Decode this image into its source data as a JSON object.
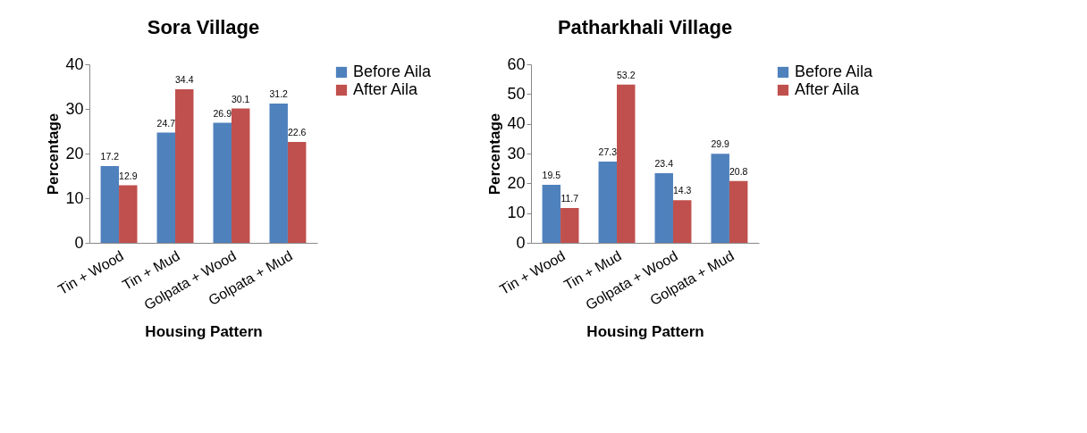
{
  "chart_data": [
    {
      "type": "bar",
      "title": "Sora Village",
      "xlabel": "Housing Pattern",
      "ylabel": "Percentage",
      "categories": [
        "Tin + Wood",
        "Tin + Mud",
        "Golpata + Wood",
        "Golpata + Mud"
      ],
      "series": [
        {
          "name": "Before Aila",
          "color": "#4f81bd",
          "values": [
            17.2,
            24.7,
            26.9,
            31.2
          ]
        },
        {
          "name": "After Aila",
          "color": "#c0504d",
          "values": [
            12.9,
            34.4,
            30.1,
            22.6
          ]
        }
      ],
      "ylim": [
        0,
        40
      ],
      "yticks": [
        0,
        10,
        20,
        30,
        40
      ],
      "grid": false,
      "legend": "right",
      "data_labels": true
    },
    {
      "type": "bar",
      "title": "Patharkhali Village",
      "xlabel": "Housing Pattern",
      "ylabel": "Percentage",
      "categories": [
        "Tin + Wood",
        "Tin + Mud",
        "Golpata + Wood",
        "Golpata + Mud"
      ],
      "series": [
        {
          "name": "Before Aila",
          "color": "#4f81bd",
          "values": [
            19.5,
            27.3,
            23.4,
            29.9
          ]
        },
        {
          "name": "After Aila",
          "color": "#c0504d",
          "values": [
            11.7,
            53.2,
            14.3,
            20.8
          ]
        }
      ],
      "ylim": [
        0,
        60
      ],
      "yticks": [
        0,
        10,
        20,
        30,
        40,
        50,
        60
      ],
      "grid": false,
      "legend": "right",
      "data_labels": true
    }
  ]
}
